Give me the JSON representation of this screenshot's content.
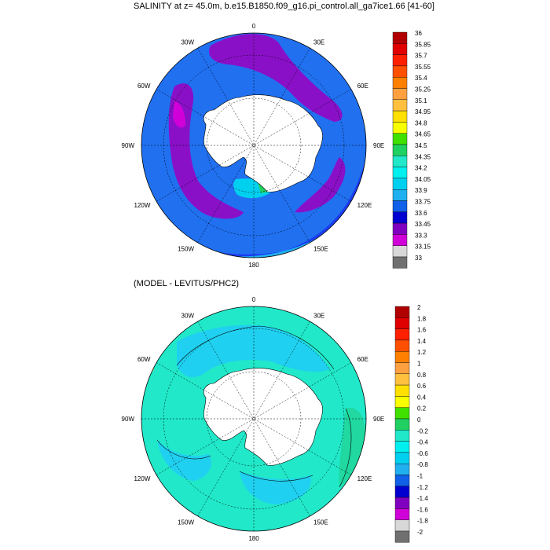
{
  "top_panel": {
    "title": "SALINITY at z=  45.0m, b.e15.B1850.f09_g16.pi_control.all_ga7ice1.66 [41-60]",
    "lon_labels": [
      "0",
      "30E",
      "60E",
      "90E",
      "120E",
      "150E",
      "180",
      "150W",
      "120W",
      "90W",
      "60W",
      "30W"
    ],
    "colorbar": {
      "labels": [
        "36",
        "35.85",
        "35.7",
        "35.55",
        "35.4",
        "35.25",
        "35.1",
        "34.95",
        "34.8",
        "34.65",
        "34.5",
        "34.35",
        "34.2",
        "34.05",
        "33.9",
        "33.75",
        "33.6",
        "33.45",
        "33.3",
        "33.15",
        "33"
      ],
      "colors": [
        "#b00000",
        "#e00000",
        "#ff2000",
        "#ff5000",
        "#ff8000",
        "#ffa040",
        "#ffc040",
        "#ffe000",
        "#f8ff00",
        "#40e000",
        "#20d060",
        "#20e8c8",
        "#00f0f0",
        "#00d0f0",
        "#20b0f0",
        "#1060e8",
        "#0000d0",
        "#8000c0",
        "#d000d8",
        "#d8d8d8",
        "#707070"
      ]
    }
  },
  "bottom_panel": {
    "title": "(MODEL - LEVITUS/PHC2)",
    "lon_labels": [
      "0",
      "30E",
      "60E",
      "90E",
      "120E",
      "150E",
      "180",
      "150W",
      "120W",
      "90W",
      "60W",
      "30W"
    ],
    "colorbar": {
      "labels": [
        "2",
        "1.8",
        "1.6",
        "1.4",
        "1.2",
        "1",
        "0.8",
        "0.6",
        "0.4",
        "0.2",
        "0",
        "-0.2",
        "-0.4",
        "-0.6",
        "-0.8",
        "-1",
        "-1.2",
        "-1.4",
        "-1.6",
        "-1.8",
        "-2"
      ],
      "colors": [
        "#b00000",
        "#e00000",
        "#ff2000",
        "#ff5000",
        "#ff8000",
        "#ffa040",
        "#ffc040",
        "#ffe000",
        "#f8ff00",
        "#40e000",
        "#20d060",
        "#20e8c8",
        "#00f0f0",
        "#00d0f0",
        "#20b0f0",
        "#1060e8",
        "#0000d0",
        "#8000c0",
        "#d000d8",
        "#d8d8d8",
        "#707070"
      ]
    }
  }
}
